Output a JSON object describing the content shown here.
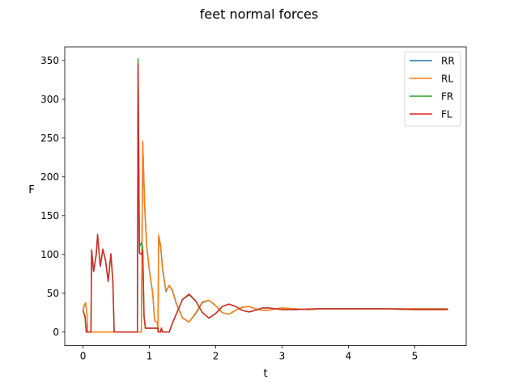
{
  "chart_data": {
    "type": "line",
    "title": "feet normal forces",
    "xlabel": "t",
    "ylabel": "F",
    "xlim": [
      -0.275,
      5.775
    ],
    "ylim": [
      -17.5,
      367.5
    ],
    "xticks": [
      0,
      1,
      2,
      3,
      4,
      5
    ],
    "yticks": [
      0,
      50,
      100,
      150,
      200,
      250,
      300,
      350
    ],
    "grid": false,
    "legend_position": "top-right",
    "series": [
      {
        "name": "RR",
        "color": "#1f77b4",
        "points": [
          [
            0.0,
            28
          ],
          [
            0.02,
            34
          ],
          [
            0.04,
            37
          ],
          [
            0.06,
            22
          ],
          [
            0.07,
            0
          ],
          [
            0.85,
            0
          ],
          [
            0.88,
            0
          ],
          [
            0.9,
            245
          ],
          [
            0.93,
            160
          ],
          [
            0.96,
            110
          ],
          [
            1.0,
            80
          ],
          [
            1.05,
            50
          ],
          [
            1.08,
            15
          ],
          [
            1.12,
            12
          ],
          [
            1.13,
            0
          ],
          [
            1.14,
            124
          ],
          [
            1.17,
            110
          ],
          [
            1.2,
            80
          ],
          [
            1.25,
            52
          ],
          [
            1.3,
            60
          ],
          [
            1.35,
            53
          ],
          [
            1.4,
            38
          ],
          [
            1.5,
            18
          ],
          [
            1.6,
            13
          ],
          [
            1.7,
            24
          ],
          [
            1.8,
            38
          ],
          [
            1.9,
            41
          ],
          [
            2.0,
            34
          ],
          [
            2.1,
            25
          ],
          [
            2.2,
            23
          ],
          [
            2.3,
            28
          ],
          [
            2.4,
            32
          ],
          [
            2.5,
            33
          ],
          [
            2.6,
            30
          ],
          [
            2.7,
            28
          ],
          [
            2.8,
            28
          ],
          [
            2.9,
            30
          ],
          [
            3.0,
            31
          ],
          [
            3.2,
            30
          ],
          [
            3.4,
            29
          ],
          [
            3.6,
            30
          ],
          [
            4.0,
            30
          ],
          [
            4.5,
            30
          ],
          [
            5.0,
            30
          ],
          [
            5.5,
            30
          ]
        ]
      },
      {
        "name": "RL",
        "color": "#ff7f0e",
        "points": [
          [
            0.0,
            29
          ],
          [
            0.02,
            35
          ],
          [
            0.04,
            38
          ],
          [
            0.06,
            22
          ],
          [
            0.07,
            0
          ],
          [
            0.85,
            0
          ],
          [
            0.88,
            0
          ],
          [
            0.9,
            246
          ],
          [
            0.93,
            162
          ],
          [
            0.96,
            112
          ],
          [
            1.0,
            80
          ],
          [
            1.05,
            50
          ],
          [
            1.08,
            15
          ],
          [
            1.12,
            12
          ],
          [
            1.13,
            0
          ],
          [
            1.14,
            125
          ],
          [
            1.17,
            112
          ],
          [
            1.2,
            82
          ],
          [
            1.25,
            53
          ],
          [
            1.3,
            60
          ],
          [
            1.35,
            54
          ],
          [
            1.4,
            39
          ],
          [
            1.5,
            18
          ],
          [
            1.6,
            13
          ],
          [
            1.7,
            25
          ],
          [
            1.8,
            39
          ],
          [
            1.9,
            41
          ],
          [
            2.0,
            34
          ],
          [
            2.1,
            25
          ],
          [
            2.2,
            23
          ],
          [
            2.3,
            28
          ],
          [
            2.4,
            32
          ],
          [
            2.5,
            33
          ],
          [
            2.6,
            30
          ],
          [
            2.7,
            28
          ],
          [
            2.8,
            28
          ],
          [
            2.9,
            30
          ],
          [
            3.0,
            31
          ],
          [
            3.2,
            30
          ],
          [
            3.4,
            29
          ],
          [
            3.6,
            30
          ],
          [
            4.0,
            30
          ],
          [
            4.5,
            30
          ],
          [
            5.0,
            30
          ],
          [
            5.5,
            30
          ]
        ]
      },
      {
        "name": "FR",
        "color": "#2ca02c",
        "points": [
          [
            0.0,
            28
          ],
          [
            0.03,
            20
          ],
          [
            0.05,
            0
          ],
          [
            0.12,
            0
          ],
          [
            0.13,
            105
          ],
          [
            0.16,
            78
          ],
          [
            0.2,
            100
          ],
          [
            0.22,
            125
          ],
          [
            0.26,
            85
          ],
          [
            0.3,
            106
          ],
          [
            0.34,
            92
          ],
          [
            0.38,
            65
          ],
          [
            0.42,
            100
          ],
          [
            0.45,
            65
          ],
          [
            0.47,
            0
          ],
          [
            0.82,
            0
          ],
          [
            0.83,
            352
          ],
          [
            0.85,
            110
          ],
          [
            0.88,
            115
          ],
          [
            0.9,
            108
          ],
          [
            0.92,
            20
          ],
          [
            0.94,
            5
          ],
          [
            1.13,
            5
          ],
          [
            1.14,
            0
          ],
          [
            1.17,
            0
          ],
          [
            1.18,
            5
          ],
          [
            1.2,
            0
          ],
          [
            1.3,
            0
          ],
          [
            1.35,
            12
          ],
          [
            1.4,
            22
          ],
          [
            1.5,
            42
          ],
          [
            1.6,
            48
          ],
          [
            1.7,
            40
          ],
          [
            1.8,
            25
          ],
          [
            1.9,
            18
          ],
          [
            2.0,
            24
          ],
          [
            2.1,
            33
          ],
          [
            2.2,
            36
          ],
          [
            2.3,
            33
          ],
          [
            2.4,
            28
          ],
          [
            2.5,
            26
          ],
          [
            2.6,
            28
          ],
          [
            2.7,
            31
          ],
          [
            2.8,
            31
          ],
          [
            2.9,
            30
          ],
          [
            3.0,
            29
          ],
          [
            3.2,
            29
          ],
          [
            3.5,
            30
          ],
          [
            4.0,
            30
          ],
          [
            4.5,
            30
          ],
          [
            5.0,
            29
          ],
          [
            5.5,
            29
          ]
        ]
      },
      {
        "name": "FL",
        "color": "#d62728",
        "points": [
          [
            0.0,
            28
          ],
          [
            0.03,
            20
          ],
          [
            0.05,
            0
          ],
          [
            0.12,
            0
          ],
          [
            0.13,
            106
          ],
          [
            0.16,
            78
          ],
          [
            0.2,
            100
          ],
          [
            0.22,
            126
          ],
          [
            0.26,
            85
          ],
          [
            0.3,
            107
          ],
          [
            0.34,
            92
          ],
          [
            0.38,
            66
          ],
          [
            0.42,
            101
          ],
          [
            0.45,
            66
          ],
          [
            0.47,
            0
          ],
          [
            0.82,
            0
          ],
          [
            0.83,
            346
          ],
          [
            0.85,
            102
          ],
          [
            0.88,
            100
          ],
          [
            0.9,
            105
          ],
          [
            0.92,
            20
          ],
          [
            0.94,
            5
          ],
          [
            1.13,
            5
          ],
          [
            1.14,
            0
          ],
          [
            1.17,
            0
          ],
          [
            1.18,
            5
          ],
          [
            1.2,
            0
          ],
          [
            1.3,
            0
          ],
          [
            1.35,
            12
          ],
          [
            1.4,
            22
          ],
          [
            1.5,
            42
          ],
          [
            1.6,
            49
          ],
          [
            1.7,
            40
          ],
          [
            1.8,
            25
          ],
          [
            1.9,
            18
          ],
          [
            2.0,
            24
          ],
          [
            2.1,
            33
          ],
          [
            2.2,
            36
          ],
          [
            2.3,
            33
          ],
          [
            2.4,
            28
          ],
          [
            2.5,
            26
          ],
          [
            2.6,
            28
          ],
          [
            2.7,
            31
          ],
          [
            2.8,
            31
          ],
          [
            2.9,
            30
          ],
          [
            3.0,
            29
          ],
          [
            3.2,
            29
          ],
          [
            3.5,
            30
          ],
          [
            4.0,
            30
          ],
          [
            4.5,
            30
          ],
          [
            5.0,
            29
          ],
          [
            5.5,
            29
          ]
        ]
      }
    ]
  }
}
